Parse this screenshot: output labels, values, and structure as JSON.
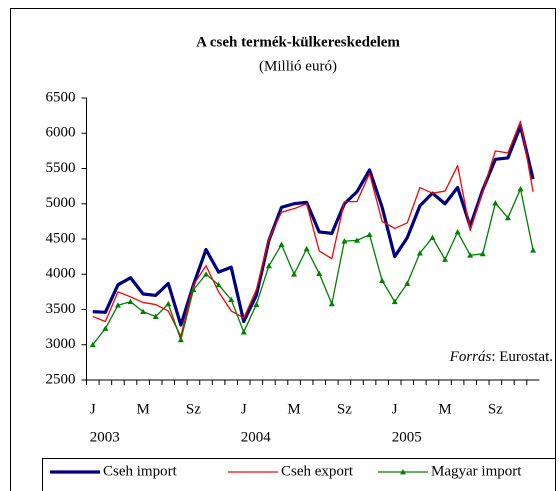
{
  "chart_data": {
    "type": "line",
    "title": "A cseh termék-külkereskedelem",
    "subtitle": "(Millió euró)",
    "categories": [
      "J",
      null,
      null,
      null,
      "M",
      null,
      null,
      null,
      "Sz",
      null,
      null,
      null,
      "J",
      null,
      null,
      null,
      "M",
      null,
      null,
      null,
      "Sz",
      null,
      null,
      null,
      "J",
      null,
      null,
      null,
      "M",
      null,
      null,
      null,
      "Sz",
      null,
      null,
      null
    ],
    "year_labels": [
      "2003",
      "2004",
      "2005"
    ],
    "series": [
      {
        "name": "Cseh import",
        "color": "#000080",
        "values": [
          3470,
          3460,
          3850,
          3950,
          3720,
          3700,
          3870,
          3280,
          3850,
          4350,
          4030,
          4100,
          3330,
          3700,
          4480,
          4950,
          5000,
          5020,
          4600,
          4580,
          5000,
          5170,
          5480,
          4950,
          4250,
          4520,
          4970,
          5150,
          5000,
          5230,
          4680,
          5200,
          5630,
          5650,
          6100,
          5350
        ]
      },
      {
        "name": "Cseh export",
        "color": "#ff0000",
        "values": [
          3400,
          3330,
          3750,
          3680,
          3600,
          3570,
          3480,
          3120,
          3850,
          4120,
          3750,
          3480,
          3380,
          3780,
          4500,
          4880,
          4930,
          5000,
          4330,
          4220,
          5030,
          5030,
          5430,
          4750,
          4650,
          4730,
          5230,
          5150,
          5180,
          5540,
          4620,
          5180,
          5750,
          5720,
          6170,
          5170
        ]
      },
      {
        "name": "Magyar import",
        "color": "#008000",
        "marker": "triangle",
        "values": [
          3000,
          3230,
          3560,
          3610,
          3470,
          3400,
          3580,
          3070,
          3780,
          4000,
          3850,
          3640,
          3180,
          3570,
          4120,
          4420,
          4000,
          4360,
          4010,
          3580,
          4470,
          4480,
          4560,
          3910,
          3610,
          3870,
          4300,
          4520,
          4210,
          4600,
          4270,
          4290,
          5010,
          4800,
          5210,
          4340
        ]
      }
    ],
    "ylim": [
      2500,
      6500
    ],
    "yticks": [
      2500,
      3000,
      3500,
      4000,
      4500,
      5000,
      5500,
      6000,
      6500
    ],
    "grid": false,
    "legend": "bottom",
    "source_label": "Forrás",
    "source_text": ": Eurostat."
  }
}
